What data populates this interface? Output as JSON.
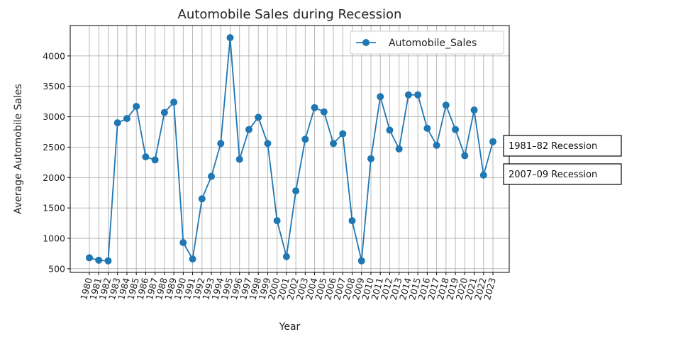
{
  "chart_data": {
    "type": "line",
    "title": "Automobile Sales during Recession",
    "xlabel": "Year",
    "ylabel": "Average Automobile Sales",
    "categories": [
      "1980",
      "1981",
      "1982",
      "1983",
      "1984",
      "1985",
      "1986",
      "1987",
      "1988",
      "1989",
      "1990",
      "1991",
      "1992",
      "1993",
      "1994",
      "1995",
      "1996",
      "1997",
      "1998",
      "1999",
      "2000",
      "2001",
      "2002",
      "2003",
      "2004",
      "2005",
      "2006",
      "2007",
      "2008",
      "2009",
      "2010",
      "2011",
      "2012",
      "2013",
      "2014",
      "2015",
      "2016",
      "2017",
      "2018",
      "2019",
      "2020",
      "2021",
      "2022",
      "2023"
    ],
    "series": [
      {
        "name": "Automobile_Sales",
        "color": "#1f77b4",
        "values": [
          680,
          640,
          630,
          2900,
          2970,
          3170,
          2340,
          2290,
          3070,
          3240,
          930,
          660,
          1650,
          2020,
          2560,
          4300,
          2300,
          2790,
          2990,
          2560,
          1290,
          700,
          1780,
          2630,
          3150,
          3080,
          2560,
          2720,
          1290,
          630,
          2310,
          3330,
          2780,
          2470,
          3360,
          3360,
          2810,
          2530,
          3190,
          2790,
          2360,
          3110,
          2040,
          2590
        ]
      }
    ],
    "yticks": [
      500,
      1000,
      1500,
      2000,
      2500,
      3000,
      3500,
      4000
    ],
    "ylim": [
      440,
      4500
    ],
    "grid": true,
    "legend_position": "top-right",
    "annotations": [
      "1981–82 Recession",
      "2007–09 Recession"
    ]
  }
}
